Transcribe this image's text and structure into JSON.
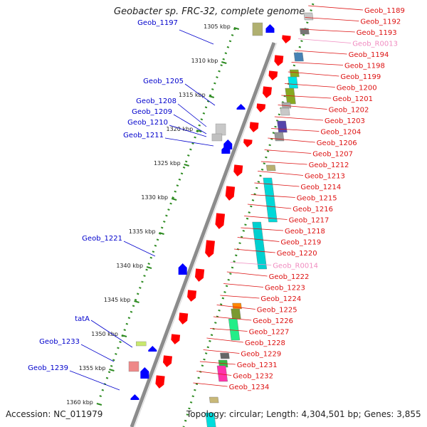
{
  "header": {
    "title": "Geobacter sp. FRC-32, complete genome",
    "accession": "Accession: NC_011979",
    "topology": "Topology: circular; Length: 4,304,501 bp; Genes: 3,855"
  },
  "colors": {
    "backbone": "#8c8c8c",
    "dotted_track": "#2e8b22",
    "left_label": "#0000cc",
    "right_label": "#dd1111",
    "rna_label": "#f08cc0",
    "forward_gene": "#ff0000",
    "reverse_gene": "#0000ff"
  },
  "kbp_markers": [
    {
      "label": "1305 kbp"
    },
    {
      "label": "1310 kbp"
    },
    {
      "label": "1315 kbp"
    },
    {
      "label": "1320 kbp"
    },
    {
      "label": "1325 kbp"
    },
    {
      "label": "1330 kbp"
    },
    {
      "label": "1335 kbp"
    },
    {
      "label": "1340 kbp"
    },
    {
      "label": "1345 kbp"
    },
    {
      "label": "1350 kbp"
    },
    {
      "label": "1355 kbp"
    },
    {
      "label": "1360 kbp"
    }
  ],
  "left_labels": [
    {
      "text": "Geob_1197"
    },
    {
      "text": "Geob_1205"
    },
    {
      "text": "Geob_1208"
    },
    {
      "text": "Geob_1209"
    },
    {
      "text": "Geob_1210"
    },
    {
      "text": "Geob_1211"
    },
    {
      "text": "Geob_1221"
    },
    {
      "text": "tatA"
    },
    {
      "text": "Geob_1233"
    },
    {
      "text": "Geob_1239"
    }
  ],
  "right_labels": [
    {
      "text": "Geob_1189"
    },
    {
      "text": "Geob_1192"
    },
    {
      "text": "Geob_1193"
    },
    {
      "text": "Geob_R0013",
      "rna": true
    },
    {
      "text": "Geob_1194"
    },
    {
      "text": "Geob_1198"
    },
    {
      "text": "Geob_1199"
    },
    {
      "text": "Geob_1200"
    },
    {
      "text": "Geob_1201"
    },
    {
      "text": "Geob_1202"
    },
    {
      "text": "Geob_1203"
    },
    {
      "text": "Geob_1204"
    },
    {
      "text": "Geob_1206"
    },
    {
      "text": "Geob_1207"
    },
    {
      "text": "Geob_1212"
    },
    {
      "text": "Geob_1213"
    },
    {
      "text": "Geob_1214"
    },
    {
      "text": "Geob_1215"
    },
    {
      "text": "Geob_1216"
    },
    {
      "text": "Geob_1217"
    },
    {
      "text": "Geob_1218"
    },
    {
      "text": "Geob_1219"
    },
    {
      "text": "Geob_1220"
    },
    {
      "text": "Geob_R0014",
      "rna": true
    },
    {
      "text": "Geob_1222"
    },
    {
      "text": "Geob_1223"
    },
    {
      "text": "Geob_1224"
    },
    {
      "text": "Geob_1225"
    },
    {
      "text": "Geob_1226"
    },
    {
      "text": "Geob_1227"
    },
    {
      "text": "Geob_1228"
    },
    {
      "text": "Geob_1229"
    },
    {
      "text": "Geob_1231"
    },
    {
      "text": "Geob_1232"
    },
    {
      "text": "Geob_1234"
    }
  ],
  "forward_genes": [
    {
      "color": "#ff0000"
    },
    {
      "color": "#ff0000"
    },
    {
      "color": "#ff0000"
    },
    {
      "color": "#ff0000"
    },
    {
      "color": "#ff0000"
    },
    {
      "color": "#ff0000"
    },
    {
      "color": "#ff0000"
    },
    {
      "color": "#ff0000"
    },
    {
      "color": "#ff0000"
    },
    {
      "color": "#ff0000"
    },
    {
      "color": "#ff0000"
    },
    {
      "color": "#ff0000"
    },
    {
      "color": "#ff0000"
    },
    {
      "color": "#ff0000"
    },
    {
      "color": "#ff0000"
    },
    {
      "color": "#ff0000"
    },
    {
      "color": "#ff0000"
    }
  ],
  "feature_blocks": [
    {
      "color": "#c8c8c8"
    },
    {
      "color": "#777777"
    },
    {
      "color": "#4682b4"
    },
    {
      "color": "#88aa22"
    },
    {
      "color": "#00e5e5"
    },
    {
      "color": "#88aa22"
    },
    {
      "color": "#aaaaaa"
    },
    {
      "color": "#c8c8c8"
    },
    {
      "color": "#5544aa"
    },
    {
      "color": "#999999"
    },
    {
      "color": "#b8b070"
    },
    {
      "color": "#00d8d8"
    },
    {
      "color": "#00d0d0"
    },
    {
      "color": "#ff8800"
    },
    {
      "color": "#7a9a30"
    },
    {
      "color": "#22ee88"
    },
    {
      "color": "#666666"
    },
    {
      "color": "#33bb44"
    },
    {
      "color": "#ff33aa"
    },
    {
      "color": "#c8b878"
    },
    {
      "color": "#00dddd"
    }
  ],
  "reverse_genes": [
    {
      "color": "#0000ff"
    },
    {
      "color": "#0000ff"
    },
    {
      "color": "#0000ff"
    },
    {
      "color": "#0000ff"
    },
    {
      "color": "#0000ff"
    },
    {
      "color": "#0000ff"
    },
    {
      "color": "#0000ff"
    },
    {
      "color": "#0000ff"
    }
  ],
  "reverse_blocks": [
    {
      "color": "#b0b070"
    },
    {
      "color": "#c8c8c8"
    },
    {
      "color": "#c0c0c0"
    },
    {
      "color": "#c8e86e"
    },
    {
      "color": "#ee8888"
    }
  ]
}
